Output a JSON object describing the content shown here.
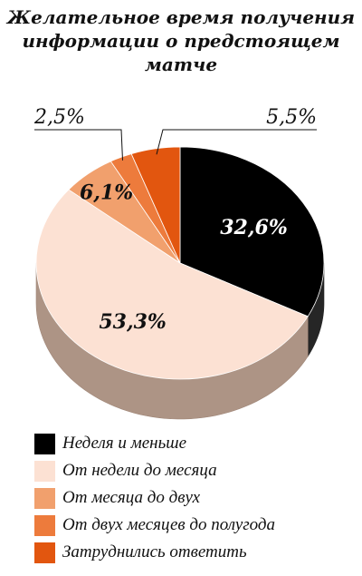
{
  "title_lines": [
    "Желательное время получения",
    "информации о предстоящем",
    "матче"
  ],
  "chart_data": {
    "type": "pie",
    "title": "Желательное время получения информации о предстоящем матче",
    "slices": [
      {
        "label": "Неделя и меньше",
        "value": 32.6,
        "text": "32,6%",
        "color": "#000000"
      },
      {
        "label": "От недели до месяца",
        "value": 53.3,
        "text": "53,3%",
        "color": "#fce1d3"
      },
      {
        "label": "От месяца до двух",
        "value": 6.1,
        "text": "6,1%",
        "color": "#f1a06d"
      },
      {
        "label": "От двух месяцев до полугода",
        "value": 2.5,
        "text": "2,5%",
        "color": "#ed7b3c"
      },
      {
        "label": "Затруднились ответить",
        "value": 5.5,
        "text": "5,5%",
        "color": "#e2560f"
      }
    ],
    "three_d": true,
    "legend_position": "bottom"
  },
  "legend": [
    {
      "label": "Неделя и меньше",
      "color": "#000000"
    },
    {
      "label": "От недели до месяца",
      "color": "#fce1d3"
    },
    {
      "label": "От месяца до двух",
      "color": "#f1a06d"
    },
    {
      "label": "От двух месяцев до полугода",
      "color": "#ed7b3c"
    },
    {
      "label": "Затруднились ответить",
      "color": "#e2560f"
    }
  ]
}
